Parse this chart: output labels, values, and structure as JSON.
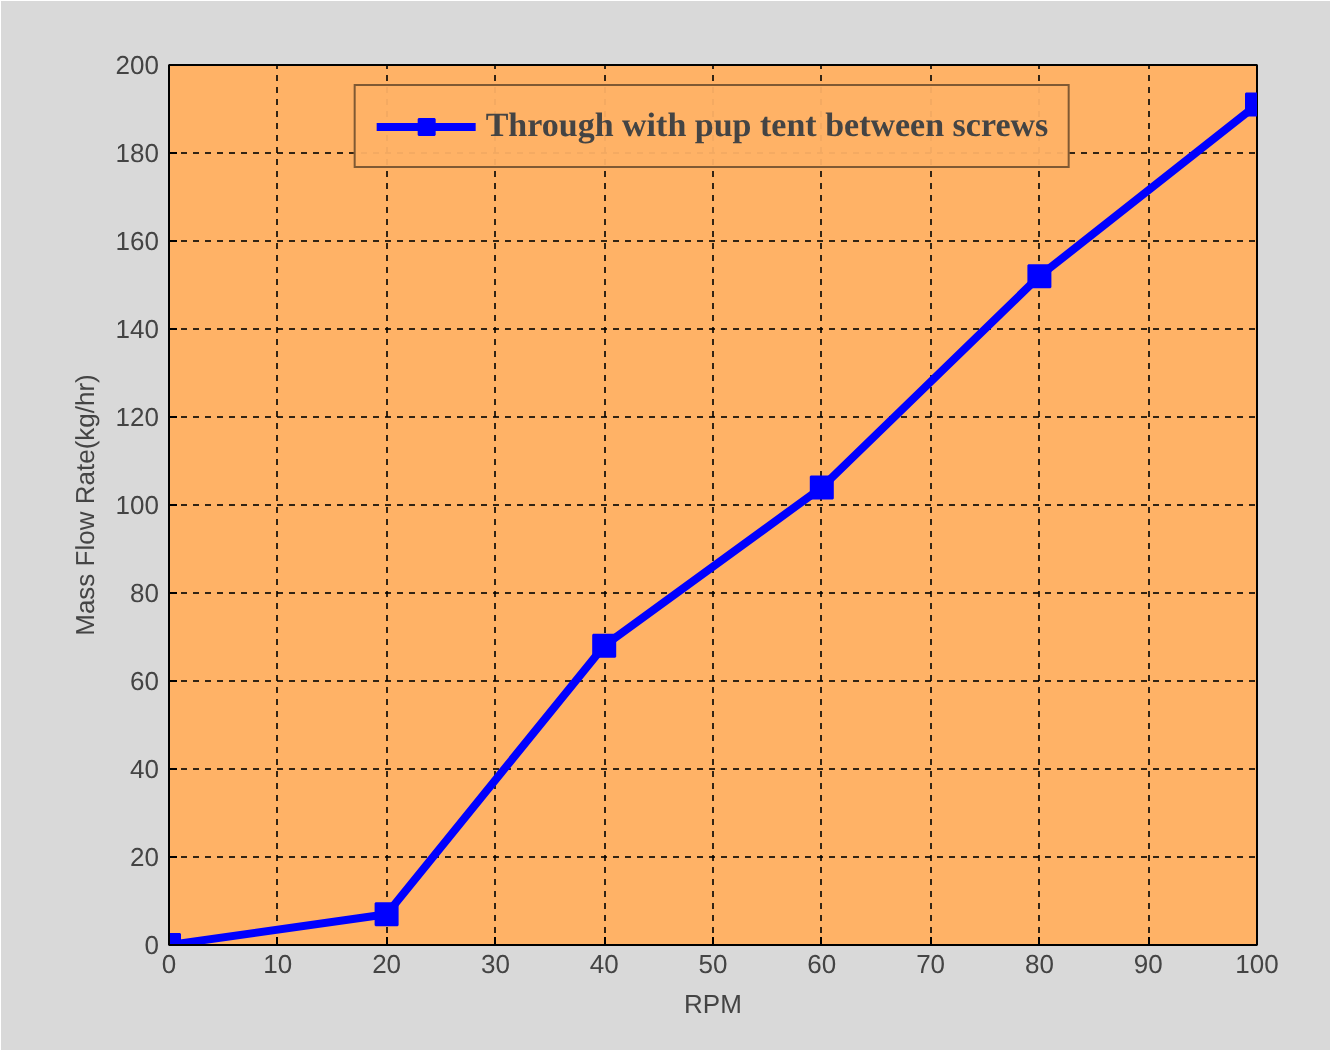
{
  "chart_data": {
    "type": "line",
    "xlabel": "RPM",
    "ylabel": "Mass Flow Rate(kg/hr)",
    "x": [
      0,
      20,
      40,
      60,
      80,
      100
    ],
    "series": [
      {
        "name": "Through with pup tent between screws",
        "color": "#0000ff",
        "values": [
          0,
          7,
          68,
          104,
          152,
          191
        ]
      }
    ],
    "xlim": [
      0,
      100
    ],
    "xticks": [
      0,
      10,
      20,
      30,
      40,
      50,
      60,
      70,
      80,
      90,
      100
    ],
    "ylim": [
      0,
      200
    ],
    "yticks": [
      0,
      20,
      40,
      60,
      80,
      100,
      120,
      140,
      160,
      180,
      200
    ],
    "grid": true,
    "legend": "top",
    "marker": "square",
    "line_style": "solid"
  }
}
